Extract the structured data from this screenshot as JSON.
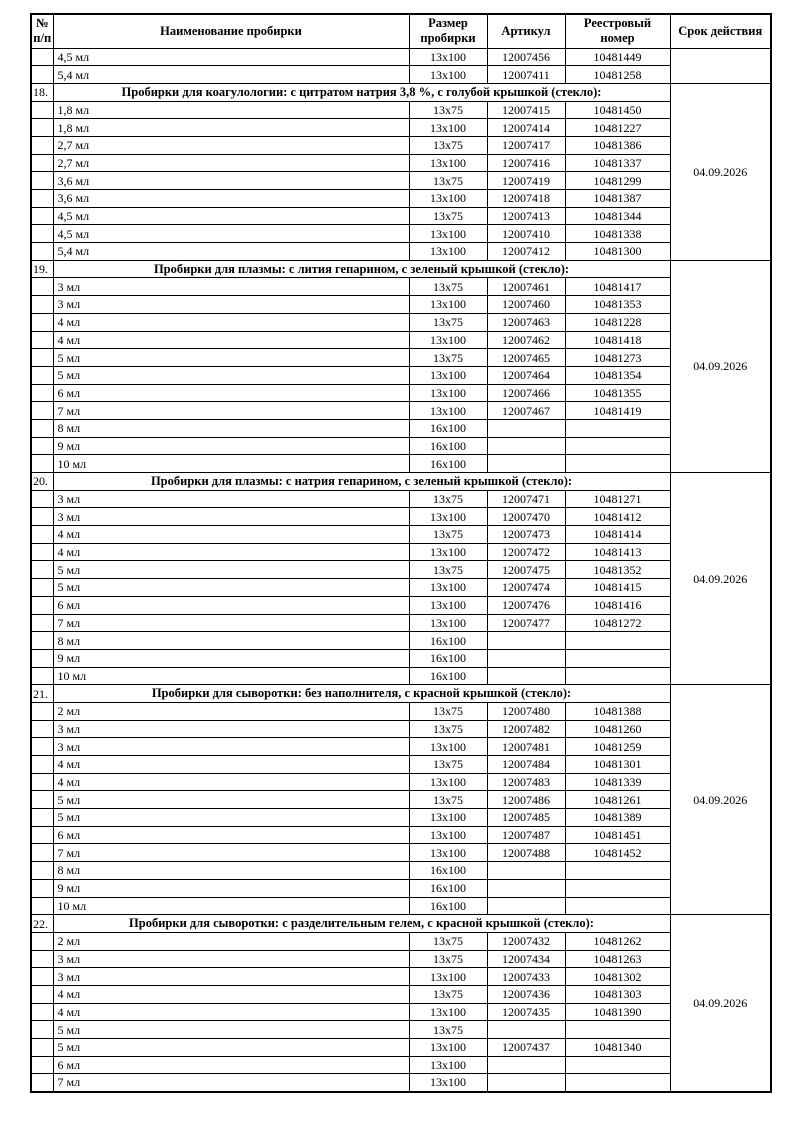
{
  "document": {
    "columns": [
      "№ п/п",
      "Наименование пробирки",
      "Размер пробирки",
      "Артикул",
      "Реестровый номер",
      "Срок действия"
    ],
    "sections": [
      {
        "number": "",
        "title": "",
        "validity": "",
        "rows": [
          [
            "4,5 мл",
            "13x100",
            "12007456",
            "10481449"
          ],
          [
            "5,4 мл",
            "13x100",
            "12007411",
            "10481258"
          ]
        ]
      },
      {
        "number": "18.",
        "title": "Пробирки для коагулологии: с цитратом натрия 3,8 %, с голубой крышкой (стекло):",
        "validity": "04.09.2026",
        "rows": [
          [
            "1,8 мл",
            "13x75",
            "12007415",
            "10481450"
          ],
          [
            "1,8 мл",
            "13x100",
            "12007414",
            "10481227"
          ],
          [
            "2,7 мл",
            "13x75",
            "12007417",
            "10481386"
          ],
          [
            "2,7 мл",
            "13x100",
            "12007416",
            "10481337"
          ],
          [
            "3,6 мл",
            "13x75",
            "12007419",
            "10481299"
          ],
          [
            "3,6 мл",
            "13x100",
            "12007418",
            "10481387"
          ],
          [
            "4,5 мл",
            "13x75",
            "12007413",
            "10481344"
          ],
          [
            "4,5 мл",
            "13x100",
            "12007410",
            "10481338"
          ],
          [
            "5,4 мл",
            "13x100",
            "12007412",
            "10481300"
          ]
        ]
      },
      {
        "number": "19.",
        "title": "Пробирки для плазмы: с лития гепарином, с зеленый крышкой (стекло):",
        "validity": "04.09.2026",
        "rows": [
          [
            "3 мл",
            "13x75",
            "12007461",
            "10481417"
          ],
          [
            "3 мл",
            "13x100",
            "12007460",
            "10481353"
          ],
          [
            "4 мл",
            "13x75",
            "12007463",
            "10481228"
          ],
          [
            "4 мл",
            "13x100",
            "12007462",
            "10481418"
          ],
          [
            "5 мл",
            "13x75",
            "12007465",
            "10481273"
          ],
          [
            "5 мл",
            "13x100",
            "12007464",
            "10481354"
          ],
          [
            "6 мл",
            "13x100",
            "12007466",
            "10481355"
          ],
          [
            "7 мл",
            "13x100",
            "12007467",
            "10481419"
          ],
          [
            "8 мл",
            "16x100",
            "",
            ""
          ],
          [
            "9 мл",
            "16x100",
            "",
            ""
          ],
          [
            "10 мл",
            "16x100",
            "",
            ""
          ]
        ]
      },
      {
        "number": "20.",
        "title": "Пробирки для плазмы: с натрия гепарином, с зеленый крышкой (стекло):",
        "validity": "04.09.2026",
        "rows": [
          [
            "3 мл",
            "13x75",
            "12007471",
            "10481271"
          ],
          [
            "3 мл",
            "13x100",
            "12007470",
            "10481412"
          ],
          [
            "4 мл",
            "13x75",
            "12007473",
            "10481414"
          ],
          [
            "4 мл",
            "13x100",
            "12007472",
            "10481413"
          ],
          [
            "5 мл",
            "13x75",
            "12007475",
            "10481352"
          ],
          [
            "5 мл",
            "13x100",
            "12007474",
            "10481415"
          ],
          [
            "6 мл",
            "13x100",
            "12007476",
            "10481416"
          ],
          [
            "7 мл",
            "13x100",
            "12007477",
            "10481272"
          ],
          [
            "8 мл",
            "16x100",
            "",
            ""
          ],
          [
            "9 мл",
            "16x100",
            "",
            ""
          ],
          [
            "10 мл",
            "16x100",
            "",
            ""
          ]
        ]
      },
      {
        "number": "21.",
        "title": "Пробирки для сыворотки: без наполнителя, с красной крышкой (стекло):",
        "validity": "04.09.2026",
        "rows": [
          [
            "2 мл",
            "13x75",
            "12007480",
            "10481388"
          ],
          [
            "3 мл",
            "13x75",
            "12007482",
            "10481260"
          ],
          [
            "3 мл",
            "13x100",
            "12007481",
            "10481259"
          ],
          [
            "4 мл",
            "13x75",
            "12007484",
            "10481301"
          ],
          [
            "4 мл",
            "13x100",
            "12007483",
            "10481339"
          ],
          [
            "5 мл",
            "13x75",
            "12007486",
            "10481261"
          ],
          [
            "5 мл",
            "13x100",
            "12007485",
            "10481389"
          ],
          [
            "6 мл",
            "13x100",
            "12007487",
            "10481451"
          ],
          [
            "7 мл",
            "13x100",
            "12007488",
            "10481452"
          ],
          [
            "8 мл",
            "16x100",
            "",
            ""
          ],
          [
            "9 мл",
            "16x100",
            "",
            ""
          ],
          [
            "10 мл",
            "16x100",
            "",
            ""
          ]
        ]
      },
      {
        "number": "22.",
        "title": "Пробирки для сыворотки: с разделительным гелем, с красной крышкой (стекло):",
        "validity": "04.09.2026",
        "rows": [
          [
            "2 мл",
            "13x75",
            "12007432",
            "10481262"
          ],
          [
            "3 мл",
            "13x75",
            "12007434",
            "10481263"
          ],
          [
            "3 мл",
            "13x100",
            "12007433",
            "10481302"
          ],
          [
            "4 мл",
            "13x75",
            "12007436",
            "10481303"
          ],
          [
            "4 мл",
            "13x100",
            "12007435",
            "10481390"
          ],
          [
            "5 мл",
            "13x75",
            "",
            ""
          ],
          [
            "5 мл",
            "13x100",
            "12007437",
            "10481340"
          ],
          [
            "6 мл",
            "13x100",
            "",
            ""
          ],
          [
            "7 мл",
            "13x100",
            "",
            ""
          ]
        ]
      }
    ]
  }
}
